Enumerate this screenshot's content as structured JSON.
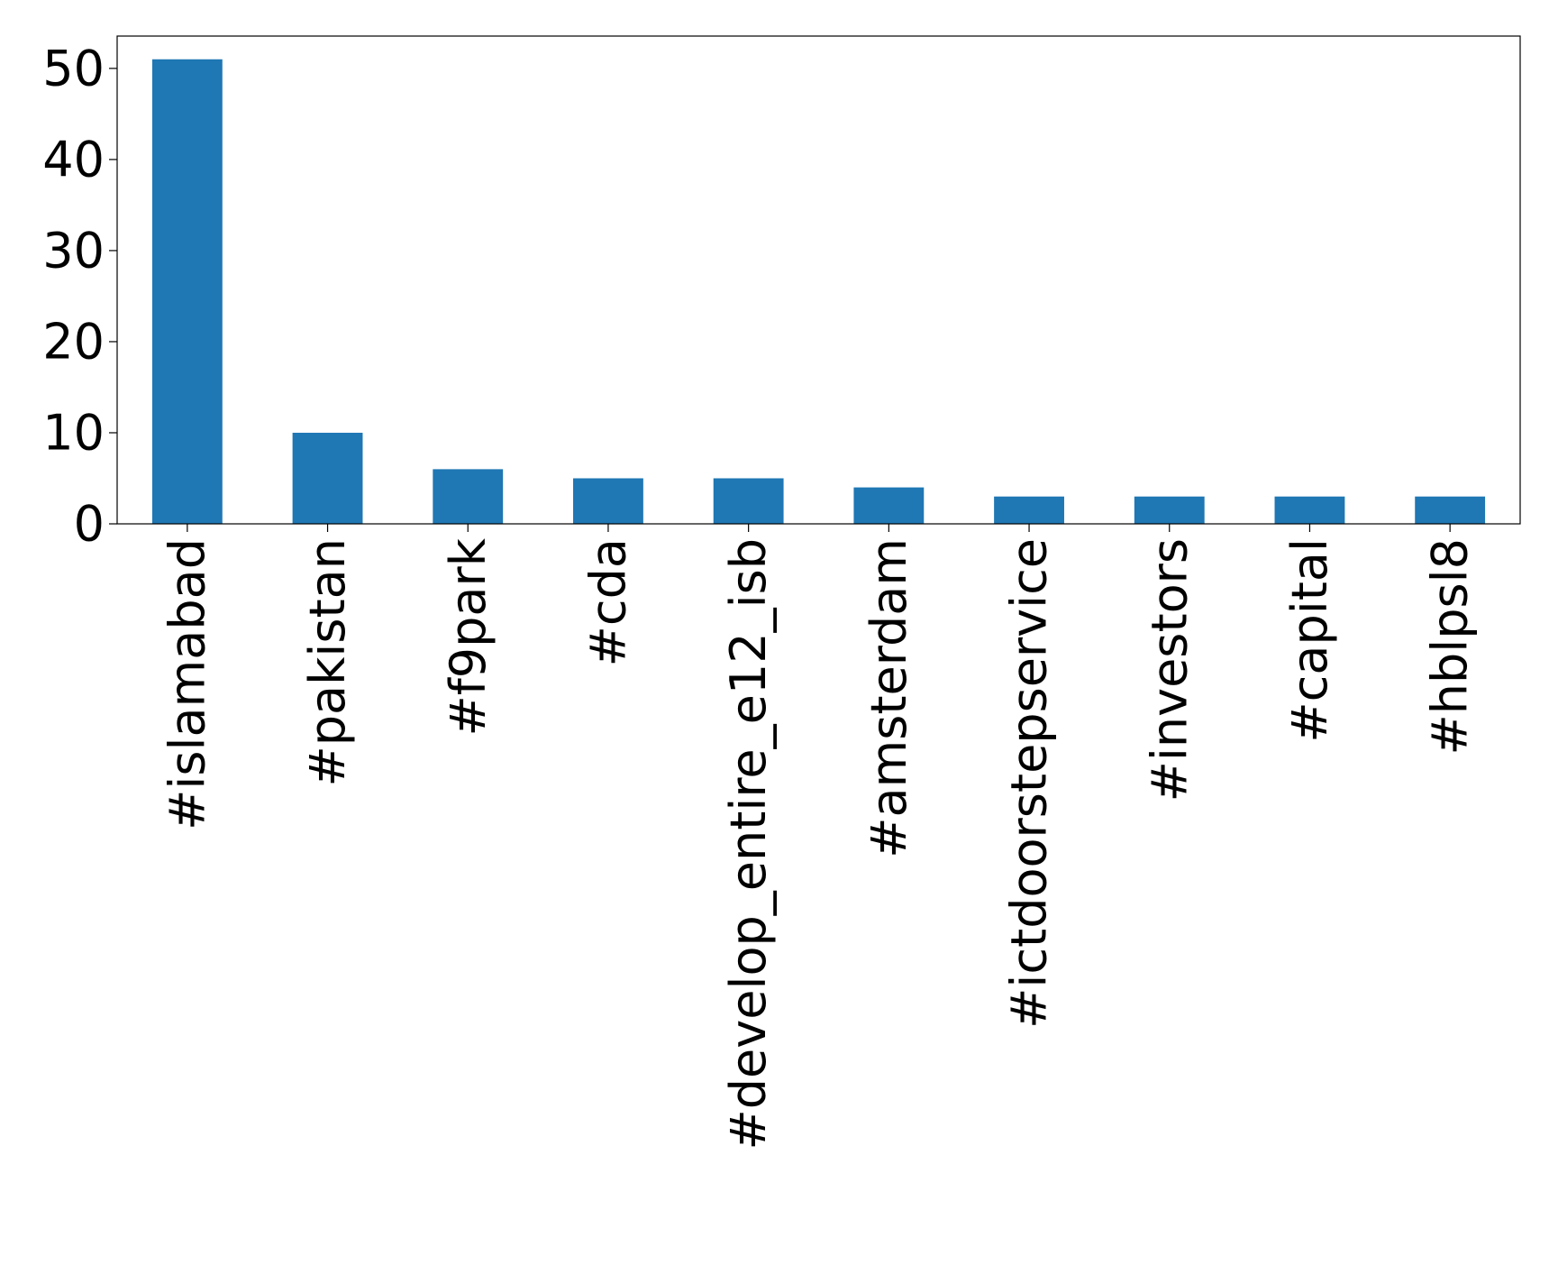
{
  "chart_data": {
    "type": "bar",
    "categories": [
      "#islamabad",
      "#pakistan",
      "#f9park",
      "#cda",
      "#develop_entire_e12_isb",
      "#amsterdam",
      "#ictdoorstepservice",
      "#investors",
      "#capital",
      "#hblpsl8"
    ],
    "values": [
      51,
      10,
      6,
      5,
      5,
      4,
      3,
      3,
      3,
      3
    ],
    "color": "#1f77b4",
    "ylim": [
      0,
      53.55
    ],
    "yticks": [
      0,
      10,
      20,
      30,
      40,
      50
    ],
    "grid": false
  }
}
